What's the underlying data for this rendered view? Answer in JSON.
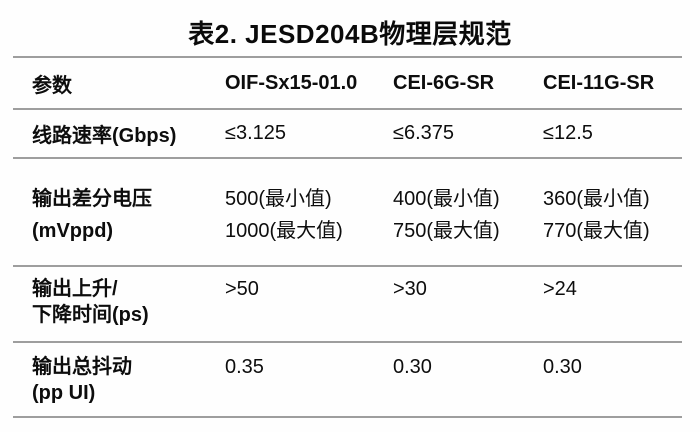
{
  "title": "表2. JESD204B物理层规范",
  "table": {
    "headers": [
      "参数",
      "OIF-Sx15-01.0",
      "CEI-6G-SR",
      "CEI-11G-SR"
    ],
    "rows": [
      {
        "param": [
          "线路速率(Gbps)"
        ],
        "cells": [
          [
            "≤3.125"
          ],
          [
            "≤6.375"
          ],
          [
            "≤12.5"
          ]
        ]
      },
      {
        "param": [
          "输出差分电压",
          "(mVppd)"
        ],
        "cells": [
          [
            "500(最小值)",
            "1000(最大值)"
          ],
          [
            "400(最小值)",
            "750(最大值)"
          ],
          [
            "360(最小值)",
            "770(最大值)"
          ]
        ]
      },
      {
        "param": [
          "输出上升/",
          "下降时间(ps)"
        ],
        "cells": [
          [
            ">50"
          ],
          [
            ">30"
          ],
          [
            ">24"
          ]
        ]
      },
      {
        "param": [
          "输出总抖动",
          "(pp UI)"
        ],
        "cells": [
          [
            "0.35"
          ],
          [
            "0.30"
          ],
          [
            "0.30"
          ]
        ]
      }
    ]
  },
  "colors": {
    "rule": "#9e9e9e",
    "text": "#0d0d0d",
    "background": "#ffffff"
  }
}
